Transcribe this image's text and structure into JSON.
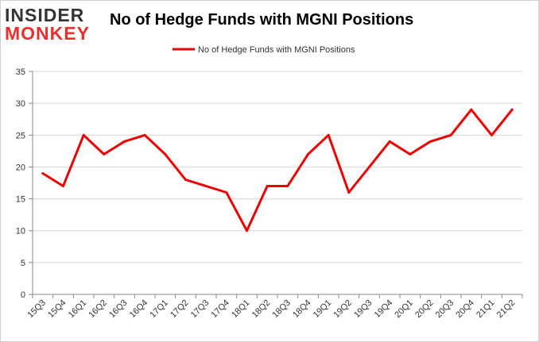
{
  "logo": {
    "line1": "INSIDER",
    "line2": "MONKEY"
  },
  "colors": {
    "series": "#ee0000",
    "grid": "#d4d4d4",
    "axis": "#888888",
    "logo_accent": "#e8302c"
  },
  "chart_data": {
    "type": "line",
    "title": "No of Hedge Funds with MGNI Positions",
    "xlabel": "",
    "ylabel": "",
    "ylim": [
      0,
      35
    ],
    "yticks": [
      0,
      5,
      10,
      15,
      20,
      25,
      30,
      35
    ],
    "grid": true,
    "legend_position": "top-center",
    "categories": [
      "15Q3",
      "15Q4",
      "16Q1",
      "16Q2",
      "16Q3",
      "16Q4",
      "17Q1",
      "17Q2",
      "17Q3",
      "17Q4",
      "18Q1",
      "18Q2",
      "18Q3",
      "18Q4",
      "19Q1",
      "19Q2",
      "19Q3",
      "19Q4",
      "20Q1",
      "20Q2",
      "20Q3",
      "20Q4",
      "21Q1",
      "21Q2"
    ],
    "series": [
      {
        "name": "No of Hedge Funds with MGNI Positions",
        "values": [
          19,
          17,
          25,
          22,
          24,
          25,
          22,
          18,
          17,
          16,
          10,
          17,
          17,
          22,
          25,
          16,
          20,
          24,
          22,
          24,
          25,
          29,
          25,
          29
        ]
      }
    ]
  }
}
